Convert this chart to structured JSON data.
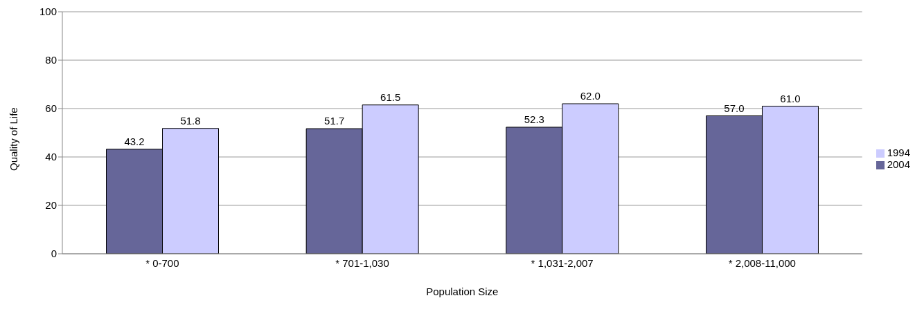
{
  "chart_data": {
    "type": "bar",
    "xlabel": "Population Size",
    "ylabel": "Quality of Life",
    "categories": [
      "* 0-700",
      "* 701-1,030",
      "* 1,031-2,007",
      "* 2,008-11,000"
    ],
    "series": [
      {
        "name": "2004",
        "color": "#666699",
        "values": [
          43.2,
          51.7,
          52.3,
          57.0
        ],
        "value_labels": [
          "43.2",
          "51.7",
          "52.3",
          "57.0"
        ]
      },
      {
        "name": "1994",
        "color": "#ccccff",
        "values": [
          51.8,
          61.5,
          62.0,
          61.0
        ],
        "value_labels": [
          "51.8",
          "61.5",
          "62.0",
          "61.0"
        ]
      }
    ],
    "ylim": [
      0,
      100
    ],
    "yticks": [
      0,
      20,
      40,
      60,
      80,
      100
    ],
    "grid": "y",
    "legend": "right"
  }
}
